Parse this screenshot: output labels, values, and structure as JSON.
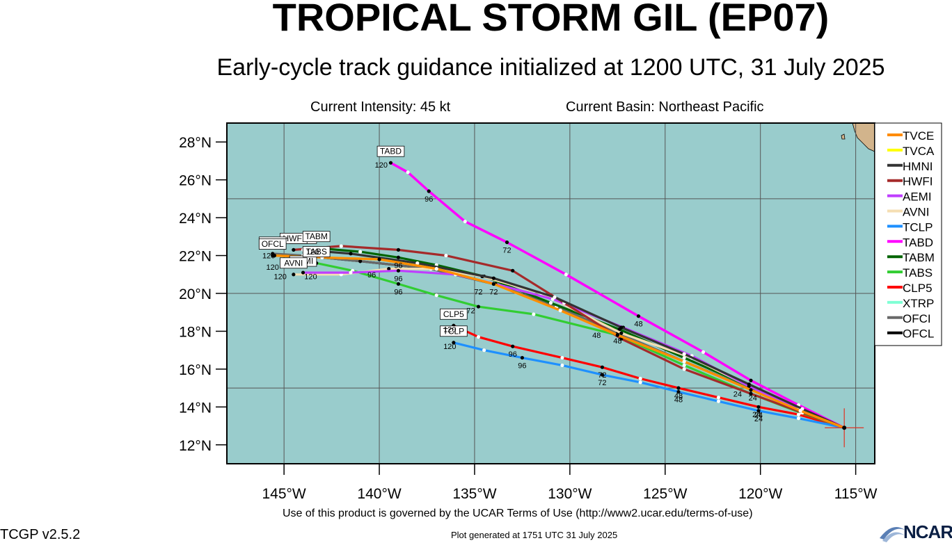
{
  "header": {
    "title": "TROPICAL STORM GIL (EP07)",
    "subtitle": "Early-cycle track guidance initialized at 1200 UTC, 31 July 2025",
    "current_intensity": "Current Intensity: 45 kt",
    "current_basin": "Current Basin: Northeast Pacific"
  },
  "footer": {
    "terms": "Use of this product is governed by the UCAR Terms of Use (http://www2.ucar.edu/terms-of-use)",
    "generated": "Plot generated at 1751 UTC   31 July 2025",
    "version": "TCGP v2.5.2",
    "logo_text": "NCAR"
  },
  "map": {
    "lon_range": [
      -148,
      -114
    ],
    "lat_range": [
      11,
      29
    ],
    "lat_ticks": [
      {
        "value": 28,
        "label": "28°N"
      },
      {
        "value": 26,
        "label": "26°N"
      },
      {
        "value": 24,
        "label": "24°N"
      },
      {
        "value": 22,
        "label": "22°N"
      },
      {
        "value": 20,
        "label": "20°N"
      },
      {
        "value": 18,
        "label": "18°N"
      },
      {
        "value": 16,
        "label": "16°N"
      },
      {
        "value": 14,
        "label": "14°N"
      },
      {
        "value": 12,
        "label": "12°N"
      }
    ],
    "lon_ticks": [
      {
        "value": -145,
        "label": "145°W"
      },
      {
        "value": -140,
        "label": "140°W"
      },
      {
        "value": -135,
        "label": "135°W"
      },
      {
        "value": -130,
        "label": "130°W"
      },
      {
        "value": -125,
        "label": "125°W"
      },
      {
        "value": -120,
        "label": "120°W"
      },
      {
        "value": -115,
        "label": "115°W"
      }
    ],
    "ocean_color": "#99cccc",
    "land_color": "#d2b48c",
    "grid_lon": [
      -145,
      -140,
      -135,
      -130,
      -125,
      -120,
      -115
    ],
    "grid_lat": [
      25,
      20,
      15
    ],
    "init_position": [
      -115.6,
      12.9
    ],
    "models": [
      {
        "name": "TVCE",
        "color": "#ff8c00",
        "track": [
          [
            -115.6,
            12.9
          ],
          [
            -117.9,
            13.8
          ],
          [
            -120.5,
            14.9
          ],
          [
            -124,
            16.4
          ],
          [
            -127.5,
            17.8
          ],
          [
            -130.5,
            19.1
          ],
          [
            -134,
            20.5
          ],
          [
            -137,
            21.3
          ],
          [
            -140,
            21.8
          ],
          [
            -143,
            21.9
          ],
          [
            -145.5,
            22
          ]
        ],
        "labels": [],
        "end_label": ""
      },
      {
        "name": "TVCA",
        "color": "#ffff00",
        "track": [
          [
            -115.6,
            12.9
          ],
          [
            -117.9,
            13.8
          ],
          [
            -120.5,
            14.9
          ],
          [
            -124,
            16.4
          ],
          [
            -127.5,
            17.8
          ],
          [
            -130.5,
            19.1
          ],
          [
            -134,
            20.5
          ],
          [
            -137,
            21.3
          ],
          [
            -140,
            21.8
          ],
          [
            -143,
            21.9
          ],
          [
            -145.5,
            22
          ]
        ],
        "labels": [],
        "end_label": ""
      },
      {
        "name": "HMNI",
        "color": "#333333",
        "track": [
          [
            -115.6,
            12.9
          ],
          [
            -117.8,
            13.9
          ],
          [
            -120.6,
            15.2
          ],
          [
            -124,
            16.8
          ],
          [
            -127.3,
            18.2
          ],
          [
            -130.8,
            19.8
          ],
          [
            -134,
            20.8
          ],
          [
            -138,
            21.6
          ],
          [
            -141.5,
            22.1
          ],
          [
            -144,
            22.3
          ]
        ],
        "labels": [],
        "end_label": "HMNI"
      },
      {
        "name": "HWFI",
        "color": "#a52a2a",
        "track": [
          [
            -115.6,
            12.9
          ],
          [
            -117.8,
            13.7
          ],
          [
            -120.5,
            14.7
          ],
          [
            -124,
            16
          ],
          [
            -127.3,
            17.6
          ],
          [
            -130.3,
            19.5
          ],
          [
            -133,
            21.2
          ],
          [
            -136.5,
            22
          ],
          [
            -139,
            22.3
          ],
          [
            -142,
            22.5
          ],
          [
            -144.5,
            22.3
          ]
        ],
        "labels": [],
        "end_label": "HWFI"
      },
      {
        "name": "AEMI",
        "color": "#bf3eff",
        "track": [
          [
            -115.6,
            12.9
          ],
          [
            -118,
            13.9
          ],
          [
            -120.6,
            15.1
          ],
          [
            -123.6,
            16.7
          ],
          [
            -127.2,
            18.2
          ],
          [
            -130.9,
            19.7
          ],
          [
            -133.9,
            20.5
          ],
          [
            -136,
            21
          ],
          [
            -139,
            21.2
          ],
          [
            -141.5,
            21.1
          ],
          [
            -144,
            21.1
          ]
        ],
        "labels": [],
        "end_label": "AEMI"
      },
      {
        "name": "AVNI",
        "color": "#f5deb3",
        "track": [
          [
            -115.6,
            12.9
          ],
          [
            -118,
            13.9
          ],
          [
            -120.6,
            15.1
          ],
          [
            -123.6,
            16.6
          ],
          [
            -127.3,
            17.9
          ],
          [
            -131.5,
            20
          ],
          [
            -134.6,
            20.9
          ],
          [
            -137,
            21.3
          ],
          [
            -139.5,
            21.3
          ],
          [
            -142,
            21
          ],
          [
            -144.5,
            21
          ]
        ],
        "labels": [],
        "end_label": "AVNI"
      },
      {
        "name": "TCLP",
        "color": "#1e90ff",
        "track": [
          [
            -115.6,
            12.9
          ],
          [
            -118,
            13.4
          ],
          [
            -120.1,
            13.8
          ],
          [
            -122.2,
            14.3
          ],
          [
            -124.3,
            14.8
          ],
          [
            -126.3,
            15.3
          ],
          [
            -128.3,
            15.7
          ],
          [
            -130.4,
            16.2
          ],
          [
            -132.5,
            16.6
          ],
          [
            -134.5,
            17
          ],
          [
            -136.1,
            17.4
          ]
        ],
        "labels": [
          [
            -132.5,
            16.6,
            "96"
          ],
          [
            -128.3,
            15.7,
            "72"
          ],
          [
            -124.3,
            14.8,
            "48"
          ],
          [
            -120.1,
            13.8,
            "24"
          ]
        ],
        "end_label": "TCLP"
      },
      {
        "name": "TABD",
        "color": "#ff00ff",
        "track": [
          [
            -115.6,
            12.9
          ],
          [
            -118,
            14.1
          ],
          [
            -120.5,
            15.4
          ],
          [
            -123,
            16.9
          ],
          [
            -126.4,
            18.8
          ],
          [
            -130.2,
            21
          ],
          [
            -133.3,
            22.7
          ],
          [
            -135.5,
            23.8
          ],
          [
            -137.4,
            25.4
          ],
          [
            -138.5,
            26.4
          ],
          [
            -139.4,
            26.9
          ]
        ],
        "labels": [
          [
            -137.4,
            25.4,
            "96"
          ],
          [
            -133.3,
            22.7,
            "72"
          ],
          [
            -126.4,
            18.8,
            "48"
          ]
        ],
        "end_label": "TABD"
      },
      {
        "name": "TABM",
        "color": "#006400",
        "track": [
          [
            -115.6,
            12.9
          ],
          [
            -118,
            13.9
          ],
          [
            -120.6,
            15.1
          ],
          [
            -124,
            16.6
          ],
          [
            -127.4,
            18.1
          ],
          [
            -131,
            19.5
          ],
          [
            -134.5,
            20.9
          ],
          [
            -137,
            21.5
          ],
          [
            -139,
            21.9
          ],
          [
            -141,
            22.2
          ],
          [
            -143.3,
            22.4
          ]
        ],
        "labels": [
          [
            -139,
            21.9,
            "96"
          ]
        ],
        "end_label": "TABM"
      },
      {
        "name": "TABS",
        "color": "#32cd32",
        "track": [
          [
            -115.6,
            12.9
          ],
          [
            -117.9,
            13.7
          ],
          [
            -120.5,
            14.7
          ],
          [
            -124,
            16.2
          ],
          [
            -127.5,
            17.8
          ],
          [
            -131.9,
            18.9
          ],
          [
            -134.8,
            19.3
          ],
          [
            -137,
            19.9
          ],
          [
            -139,
            20.5
          ],
          [
            -141.4,
            21.2
          ],
          [
            -143.3,
            21.6
          ]
        ],
        "labels": [
          [
            -139,
            20.5,
            "96"
          ]
        ],
        "end_label": "TABS"
      },
      {
        "name": "CLP5",
        "color": "#ff0000",
        "track": [
          [
            -115.6,
            12.9
          ],
          [
            -118,
            13.6
          ],
          [
            -120.1,
            14
          ],
          [
            -122.2,
            14.5
          ],
          [
            -124.3,
            15
          ],
          [
            -126.3,
            15.5
          ],
          [
            -128.3,
            16.1
          ],
          [
            -130.4,
            16.6
          ],
          [
            -133,
            17.2
          ],
          [
            -134.8,
            17.7
          ],
          [
            -136.1,
            18.3
          ]
        ],
        "labels": [
          [
            -133,
            17.2,
            "96"
          ],
          [
            -128.3,
            16.1,
            "72"
          ],
          [
            -124.3,
            15,
            "48"
          ],
          [
            -120.1,
            14,
            "24"
          ]
        ],
        "end_label": "CLP5"
      },
      {
        "name": "XTRP",
        "color": "#7fffd4",
        "track": [],
        "labels": [],
        "end_label": ""
      },
      {
        "name": "OFCI",
        "color": "#696969",
        "track": [
          [
            -115.6,
            12.9
          ],
          [
            -117.9,
            13.8
          ],
          [
            -120.4,
            14.9
          ],
          [
            -124,
            16.4
          ],
          [
            -127.5,
            17.9
          ],
          [
            -130.7,
            19.3
          ],
          [
            -134,
            20.5
          ],
          [
            -137.3,
            21.3
          ],
          [
            -141,
            21.7
          ],
          [
            -144,
            22
          ],
          [
            -145.6,
            22.1
          ]
        ],
        "labels": [],
        "end_label": "OFCI"
      },
      {
        "name": "OFCL",
        "color": "#000000",
        "track": [
          [
            -115.6,
            12.9
          ],
          [
            -117.9,
            13.8
          ],
          [
            -120.4,
            14.9
          ],
          [
            -124,
            16.4
          ],
          [
            -127.5,
            17.9
          ],
          [
            -130.7,
            19.3
          ],
          [
            -134,
            20.5
          ],
          [
            -137.3,
            21.3
          ],
          [
            -141,
            21.7
          ],
          [
            -144,
            22
          ],
          [
            -145.6,
            22
          ]
        ],
        "labels": [
          [
            -139,
            21.2,
            "96"
          ],
          [
            -134,
            20.5,
            "72"
          ],
          [
            -127.5,
            17.9,
            "48"
          ],
          [
            -120.4,
            14.9,
            "24"
          ]
        ],
        "end_label": "OFCL"
      }
    ],
    "endpoint_tags": [
      {
        "text": "120",
        "lon": -145.8,
        "lat": 22.0
      },
      {
        "text": "120",
        "lon": -145.6,
        "lat": 21.4
      },
      {
        "text": "120",
        "lon": -143.5,
        "lat": 22.2
      },
      {
        "text": "120",
        "lon": -145.2,
        "lat": 20.9
      },
      {
        "text": "120",
        "lon": -143.6,
        "lat": 20.9
      },
      {
        "text": "120",
        "lon": -139.9,
        "lat": 26.8
      },
      {
        "text": "120",
        "lon": -136.3,
        "lat": 18.1
      },
      {
        "text": "120",
        "lon": -136.3,
        "lat": 17.2
      },
      {
        "text": "96",
        "lon": -140.4,
        "lat": 21.0
      },
      {
        "text": "72",
        "lon": -134.8,
        "lat": 20.1
      },
      {
        "text": "72",
        "lon": -135.2,
        "lat": 19.1
      },
      {
        "text": "48",
        "lon": -128.6,
        "lat": 17.8
      },
      {
        "text": "24",
        "lon": -121.2,
        "lat": 14.7
      },
      {
        "text": "24",
        "lon": -120.2,
        "lat": 13.6
      }
    ]
  }
}
